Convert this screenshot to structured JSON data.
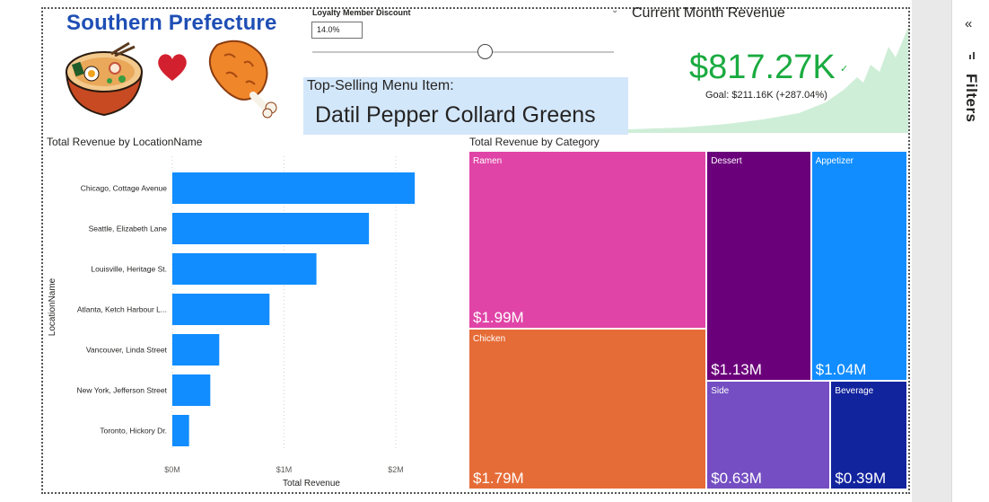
{
  "header": {
    "brand_title": "Southern Prefecture"
  },
  "slicer": {
    "title": "Loyalty Member Discount",
    "value": "14.0%",
    "level_pct": 0.57
  },
  "top_selling": {
    "label": "Top-Selling Menu Item:",
    "value": "Datil Pepper Collard Greens"
  },
  "kpi": {
    "title": "Current Month Revenue",
    "value": "$817.27K",
    "check": "✓",
    "goal": "Goal: $211.16K (+287.04%)",
    "trend_color": "#cfeed8",
    "value_color": "#1aab40"
  },
  "filters_pane": {
    "label": "Filters",
    "collapse_icon": "«"
  },
  "bar_chart": {
    "title": "Total Revenue by LocationName"
  },
  "treemap": {
    "title": "Total Revenue by Category"
  },
  "colors": {
    "bar": "#118dff",
    "tile_text": "#ffffff"
  },
  "chart_data": [
    {
      "type": "bar",
      "orientation": "horizontal",
      "categories": [
        "Chicago, Cottage Avenue",
        "Seattle, Elizabeth Lane",
        "Louisville, Heritage St.",
        "Atlanta, Ketch Harbour L...",
        "Vancouver, Linda Street",
        "New York, Jefferson Street",
        "Toronto, Hickory Dr."
      ],
      "values": [
        2.17,
        1.76,
        1.29,
        0.87,
        0.42,
        0.34,
        0.15
      ],
      "xlabel": "Total Revenue",
      "ylabel": "LocationName",
      "xlim": [
        0,
        2.3
      ],
      "xticks": [
        0,
        1,
        2
      ],
      "xtick_labels": [
        "$0M",
        "$1M",
        "$2M"
      ],
      "grid": true
    },
    {
      "type": "treemap",
      "categories": [
        "Ramen",
        "Chicken",
        "Dessert",
        "Appetizer",
        "Side",
        "Beverage"
      ],
      "values": [
        1.99,
        1.79,
        1.13,
        1.04,
        0.63,
        0.39
      ],
      "value_labels": [
        "$1.99M",
        "$1.79M",
        "$1.13M",
        "$1.04M",
        "$0.63M",
        "$0.39M"
      ],
      "colors": [
        "#e044a7",
        "#e66c37",
        "#6b007b",
        "#118dff",
        "#744ec2",
        "#12239e"
      ]
    }
  ]
}
